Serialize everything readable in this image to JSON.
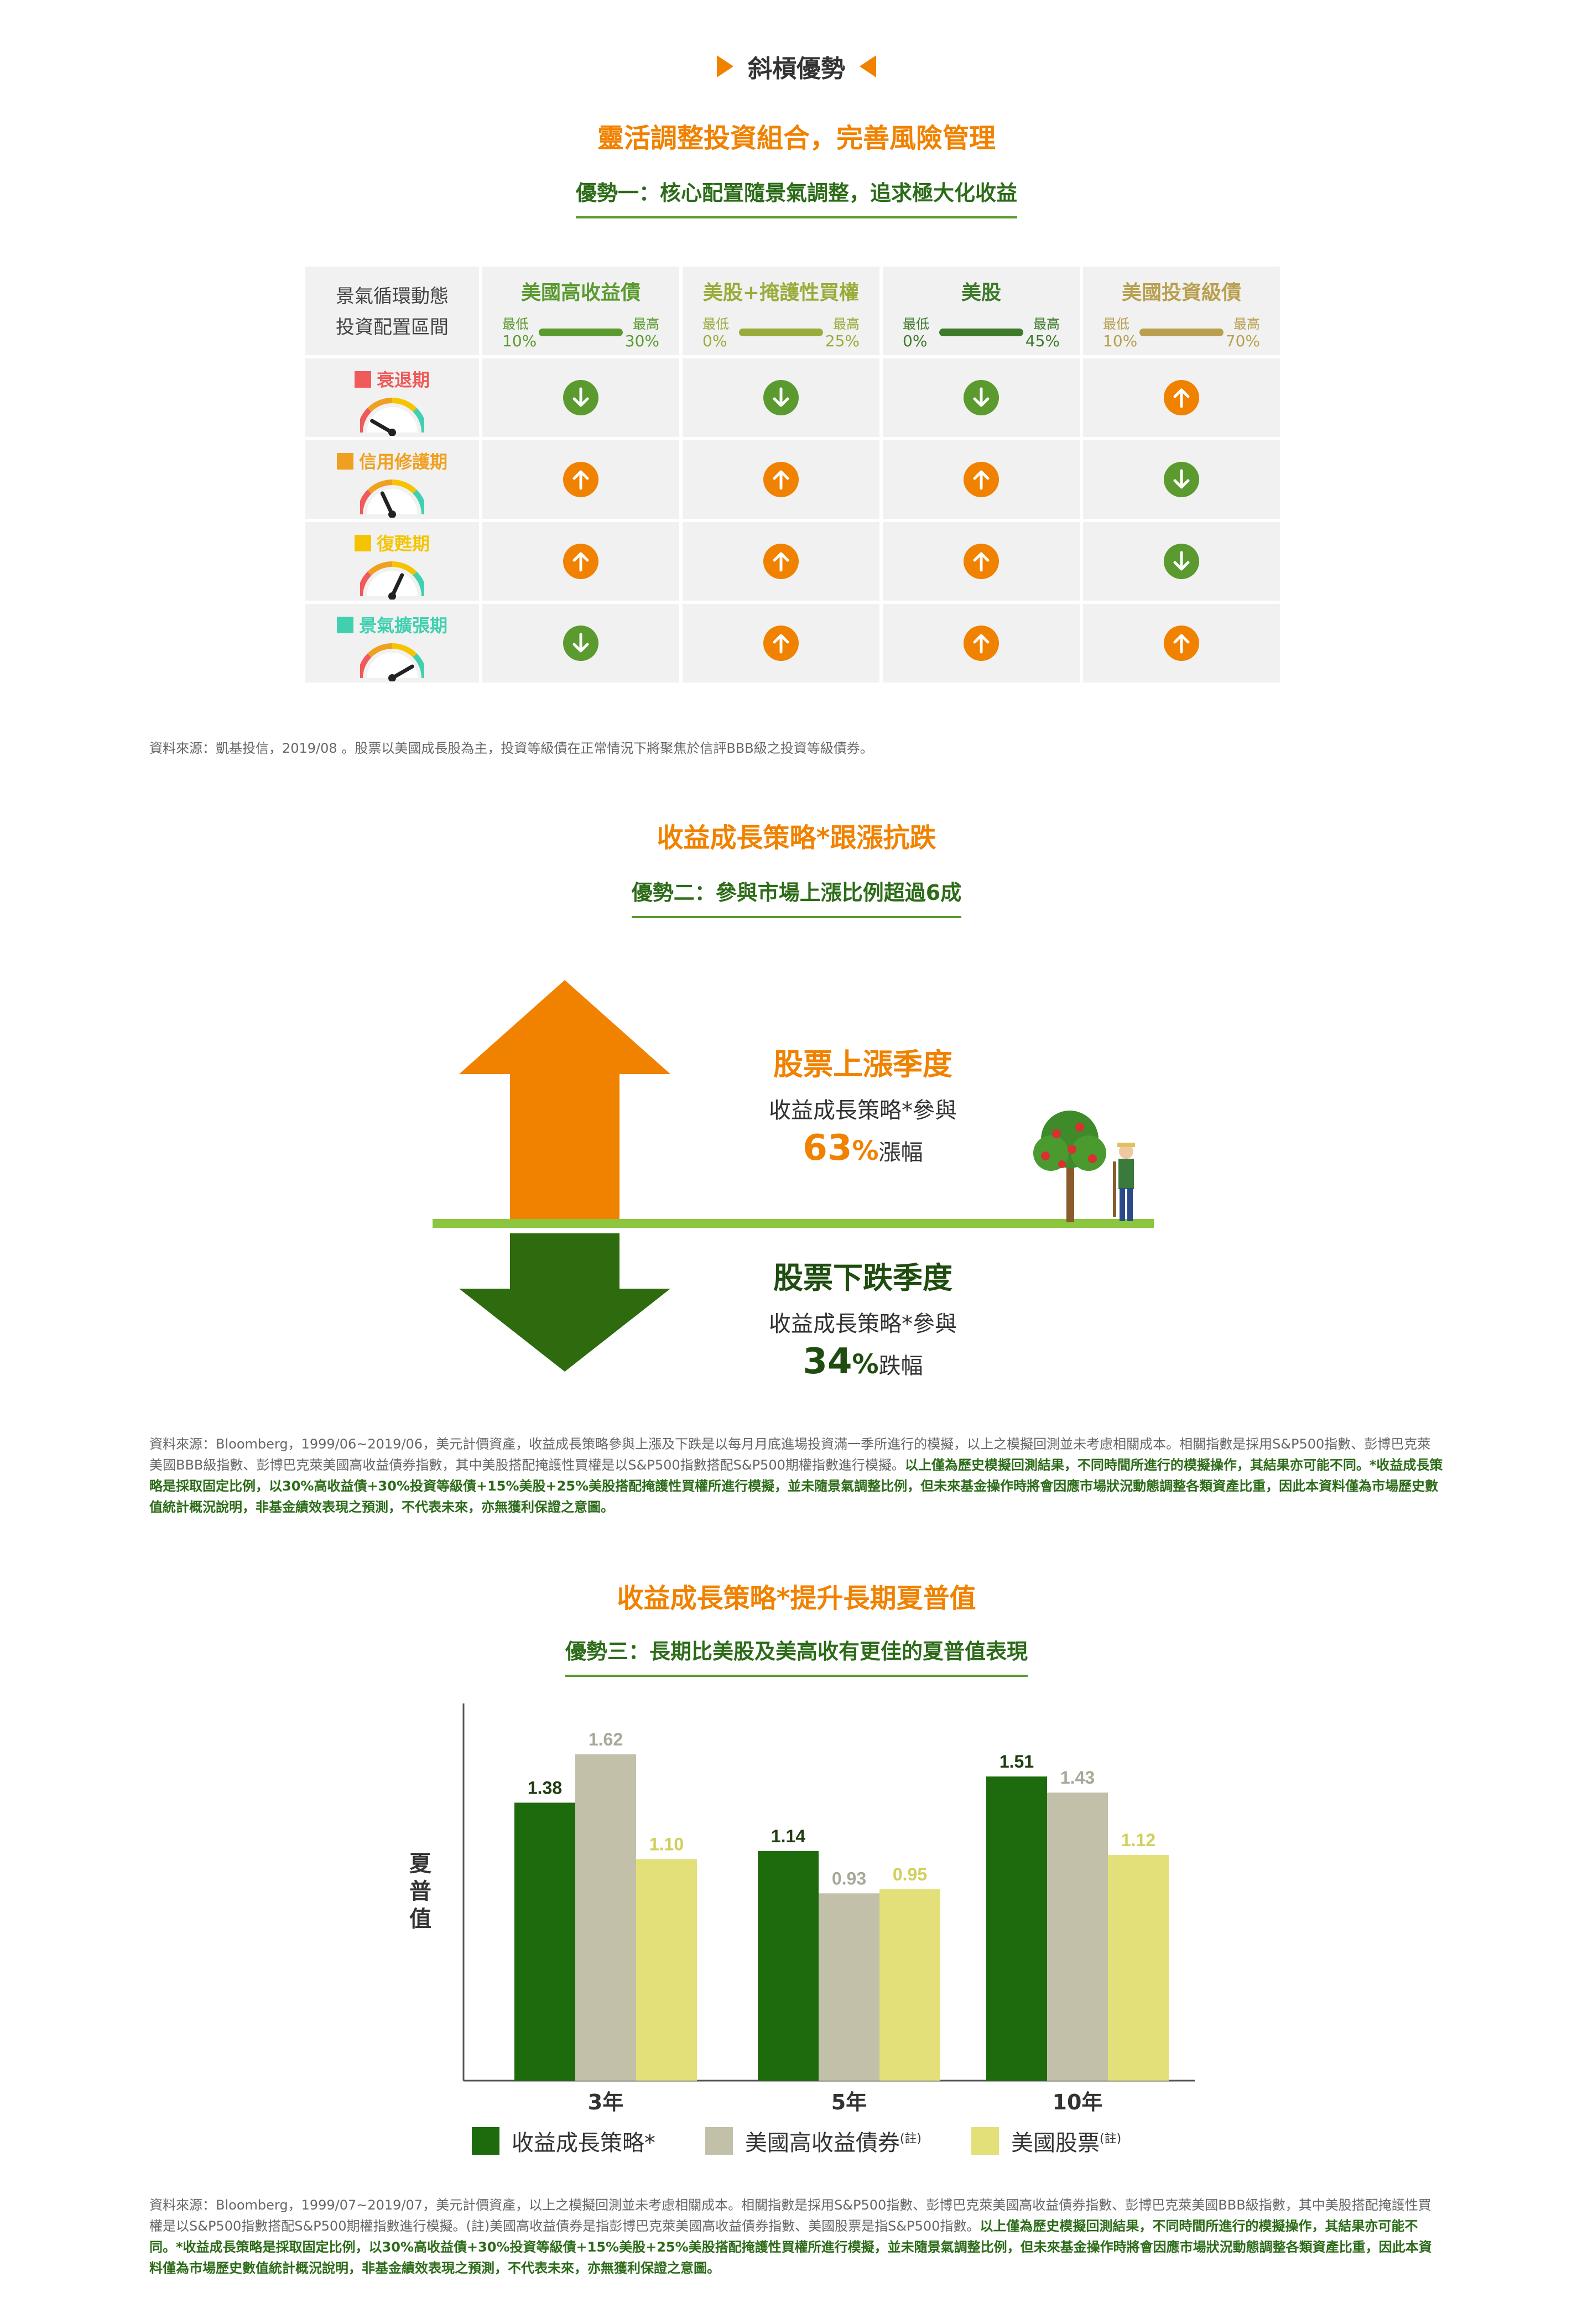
{
  "header": {
    "title": "斜槓優勢"
  },
  "section1": {
    "title": "靈活調整投資組合，完善風險管理",
    "subtitle": "優勢一：核心配置隨景氣調整，追求極大化收益",
    "corner_lines": [
      "景氣循環動態",
      "投資配置區間"
    ],
    "columns": [
      {
        "name": "美國高收益債",
        "min_label": "最低",
        "max_label": "最高",
        "min": "10%",
        "max": "30%",
        "color": "#5a9a2e"
      },
      {
        "name": "美股+掩護性買權",
        "min_label": "最低",
        "max_label": "最高",
        "min": "0%",
        "max": "25%",
        "color": "#9aab3a"
      },
      {
        "name": "美股",
        "min_label": "最低",
        "max_label": "最高",
        "min": "0%",
        "max": "45%",
        "color": "#3e7a2a"
      },
      {
        "name": "美國投資級債",
        "min_label": "最低",
        "max_label": "最高",
        "min": "10%",
        "max": "70%",
        "color": "#b8a050"
      }
    ],
    "phases": [
      {
        "name": "衰退期",
        "color": "#f05a5a",
        "gauge": "recession",
        "signals": [
          "down",
          "down",
          "down",
          "up"
        ]
      },
      {
        "name": "信用修護期",
        "color": "#f0a020",
        "gauge": "repair",
        "signals": [
          "up",
          "up",
          "up",
          "down"
        ]
      },
      {
        "name": "復甦期",
        "color": "#f5c400",
        "gauge": "recovery",
        "signals": [
          "up",
          "up",
          "up",
          "down"
        ]
      },
      {
        "name": "景氣擴張期",
        "color": "#40d0b0",
        "gauge": "expansion",
        "signals": [
          "down",
          "up",
          "up",
          "up"
        ]
      }
    ],
    "source": "資料來源：凱基投信，2019/08 。股票以美國成長股為主，投資等級債在正常情況下將聚焦於信評BBB級之投資等級債券。"
  },
  "section2": {
    "title": "收益成長策略*跟漲抗跌",
    "subtitle": "優勢二：參與市場上漲比例超過6成",
    "up": {
      "heading": "股票上漲季度",
      "desc": "收益成長策略*參與",
      "value": "63",
      "unit": "%",
      "suffix": "漲幅"
    },
    "down": {
      "heading": "股票下跌季度",
      "desc": "收益成長策略*參與",
      "value": "34",
      "unit": "%",
      "suffix": "跌幅"
    },
    "source_normal": "資料來源：Bloomberg，1999/06~2019/06，美元計價資產，收益成長策略參與上漲及下跌是以每月月底進場投資滿一季所進行的模擬，以上之模擬回測並未考慮相關成本。相關指數是採用S&P500指數、彭博巴克萊美國BBB級指數、彭博巴克萊美國高收益債券指數，其中美股搭配掩護性買權是以S&P500指數搭配S&P500期權指數進行模擬。",
    "source_bold": "以上僅為歷史模擬回測結果，不同時間所進行的模擬操作，其結果亦可能不同。*收益成長策略是採取固定比例，以30%高收益債+30%投資等級債+15%美股+25%美股搭配掩護性買權所進行模擬，並未隨景氣調整比例，但未來基金操作時將會因應市場狀況動態調整各類資產比重，因此本資料僅為市場歷史數值統計概況說明，非基金績效表現之預測，不代表未來，亦無獲利保證之意圖。"
  },
  "section3": {
    "title": "收益成長策略*提升長期夏普值",
    "subtitle": "優勢三：長期比美股及美高收有更佳的夏普值表現",
    "source_normal": "資料來源：Bloomberg，1999/07~2019/07，美元計價資產，以上之模擬回測並未考慮相關成本。相關指數是採用S&P500指數、彭博巴克萊美國高收益債券指數、彭博巴克萊美國BBB級指數，其中美股搭配掩護性買權是以S&P500指數搭配S&P500期權指數進行模擬。(註)美國高收益債券是指彭博巴克萊美國高收益債券指數、美國股票是指S&P500指數。",
    "source_bold": "以上僅為歷史模擬回測結果，不同時間所進行的模擬操作，其結果亦可能不同。*收益成長策略是採取固定比例，以30%高收益債+30%投資等級債+15%美股+25%美股搭配掩護性買權所進行模擬，並未隨景氣調整比例，但未來基金操作時將會因應市場狀況動態調整各類資產比重，因此本資料僅為市場歷史數值統計概況說明，非基金績效表現之預測，不代表未來，亦無獲利保證之意圖。"
  },
  "chart_data": {
    "type": "bar",
    "categories": [
      "3年",
      "5年",
      "10年"
    ],
    "series": [
      {
        "name": "收益成長策略*",
        "note": "",
        "values": [
          1.38,
          1.14,
          1.51
        ],
        "color": "#1e6b0e",
        "label_color": "#1f3d10"
      },
      {
        "name": "美國高收益債券",
        "note": "(註)",
        "values": [
          1.62,
          0.93,
          1.43
        ],
        "color": "#c2c0a8",
        "label_color": "#a8a898"
      },
      {
        "name": "美國股票",
        "note": "(註)",
        "values": [
          1.1,
          0.95,
          1.12
        ],
        "color": "#e3e07a",
        "label_color": "#d2cf5a"
      }
    ],
    "ylabel": "夏普值",
    "ylim": [
      0,
      1.9
    ],
    "grid": false,
    "legend": "bottom"
  }
}
